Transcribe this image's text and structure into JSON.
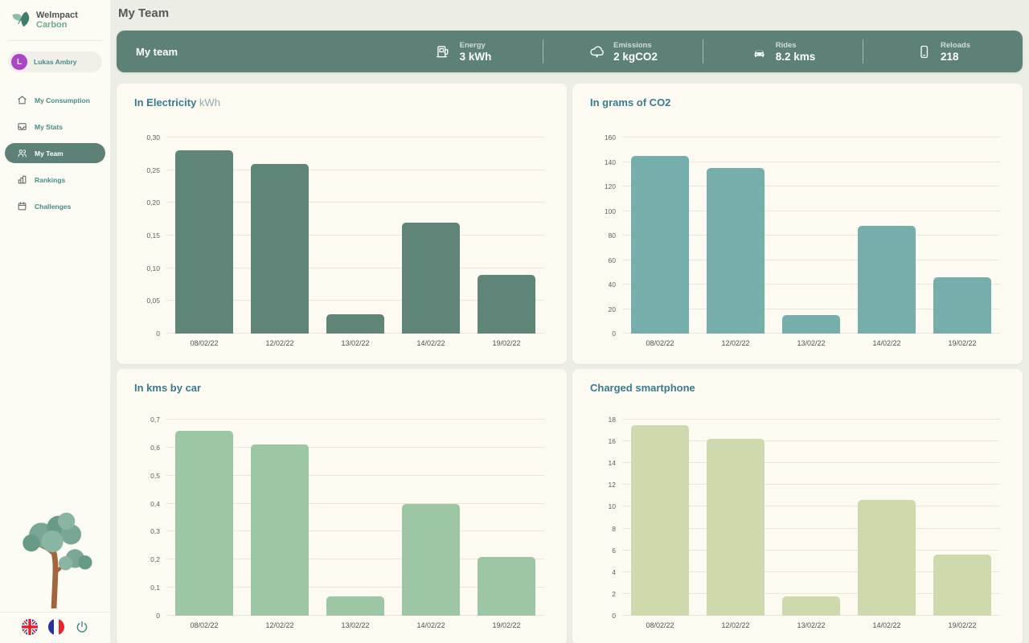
{
  "sidebar": {
    "logo": {
      "line1": "Welmpact",
      "line2": "Carbon"
    },
    "user": {
      "initial": "L",
      "name": "Lukas Ambry"
    },
    "items": [
      {
        "label": "My Consumption",
        "icon": "home-icon",
        "active": false
      },
      {
        "label": "My Stats",
        "icon": "inbox-icon",
        "active": false
      },
      {
        "label": "My Team",
        "icon": "team-icon",
        "active": true
      },
      {
        "label": "Rankings",
        "icon": "bar-chart-icon",
        "active": false
      },
      {
        "label": "Challenges",
        "icon": "calendar-icon",
        "active": false
      }
    ],
    "footer_icons": [
      "uk-flag-icon",
      "france-flag-icon",
      "power-icon"
    ]
  },
  "header": {
    "page_title": "My Team"
  },
  "stats_bar": {
    "team_label": "My team",
    "stats": [
      {
        "label": "Energy",
        "value": "3 kWh",
        "icon": "charging-station-icon"
      },
      {
        "label": "Emissions",
        "value": "2 kgCO2",
        "icon": "cloud-icon"
      },
      {
        "label": "Rides",
        "value": "8.2 kms",
        "icon": "car-icon"
      },
      {
        "label": "Reloads",
        "value": "218",
        "icon": "smartphone-icon"
      }
    ]
  },
  "chart_data": [
    {
      "type": "bar",
      "title": "In Electricity",
      "title_suffix": "kWh",
      "categories": [
        "08/02/22",
        "12/02/22",
        "13/02/22",
        "14/02/22",
        "19/02/22"
      ],
      "values": [
        0.28,
        0.26,
        0.03,
        0.17,
        0.09
      ],
      "ylim": [
        0,
        0.3
      ],
      "ytick_labels": [
        "0,30",
        "0,25",
        "0,20",
        "0,15",
        "0,10",
        "0,05",
        "0"
      ],
      "bar_color": "#5f8478",
      "grid": true,
      "legend": "none"
    },
    {
      "type": "bar",
      "title": "In grams of CO2",
      "title_suffix": "",
      "categories": [
        "08/02/22",
        "12/02/22",
        "13/02/22",
        "14/02/22",
        "19/02/22"
      ],
      "values": [
        145,
        135,
        15,
        88,
        46
      ],
      "ylim": [
        0,
        160
      ],
      "ytick_labels": [
        "160",
        "140",
        "120",
        "100",
        "80",
        "60",
        "40",
        "20",
        "0"
      ],
      "bar_color": "#76aeab",
      "grid": true,
      "legend": "none"
    },
    {
      "type": "bar",
      "title": "In kms by car",
      "title_suffix": "",
      "categories": [
        "08/02/22",
        "12/02/22",
        "13/02/22",
        "14/02/22",
        "19/02/22"
      ],
      "values": [
        0.66,
        0.61,
        0.07,
        0.4,
        0.21
      ],
      "ylim": [
        0,
        0.7
      ],
      "ytick_labels": [
        "0,7",
        "0,6",
        "0,5",
        "0,4",
        "0,3",
        "0,2",
        "0,1",
        "0"
      ],
      "bar_color": "#9dc6a4",
      "grid": true,
      "legend": "none"
    },
    {
      "type": "bar",
      "title": "Charged smartphone",
      "title_suffix": "",
      "categories": [
        "08/02/22",
        "12/02/22",
        "13/02/22",
        "14/02/22",
        "19/02/22"
      ],
      "values": [
        17.5,
        16.2,
        1.8,
        10.6,
        5.6
      ],
      "ylim": [
        0,
        18
      ],
      "ytick_labels": [
        "18",
        "16",
        "14",
        "12",
        "10",
        "8",
        "6",
        "4",
        "2",
        "0"
      ],
      "bar_color": "#cfd9ae",
      "grid": true,
      "legend": "none"
    }
  ],
  "colors": {
    "page_bg": "#ecede5",
    "sidebar_bg": "#fcfcf5",
    "card_bg": "#fdfbf1",
    "accent_dark_sage": "#5d8177",
    "accent_teal_text": "#4a8a87",
    "chart_title": "#3a7a90",
    "avatar_purple": "#ad43c6"
  }
}
